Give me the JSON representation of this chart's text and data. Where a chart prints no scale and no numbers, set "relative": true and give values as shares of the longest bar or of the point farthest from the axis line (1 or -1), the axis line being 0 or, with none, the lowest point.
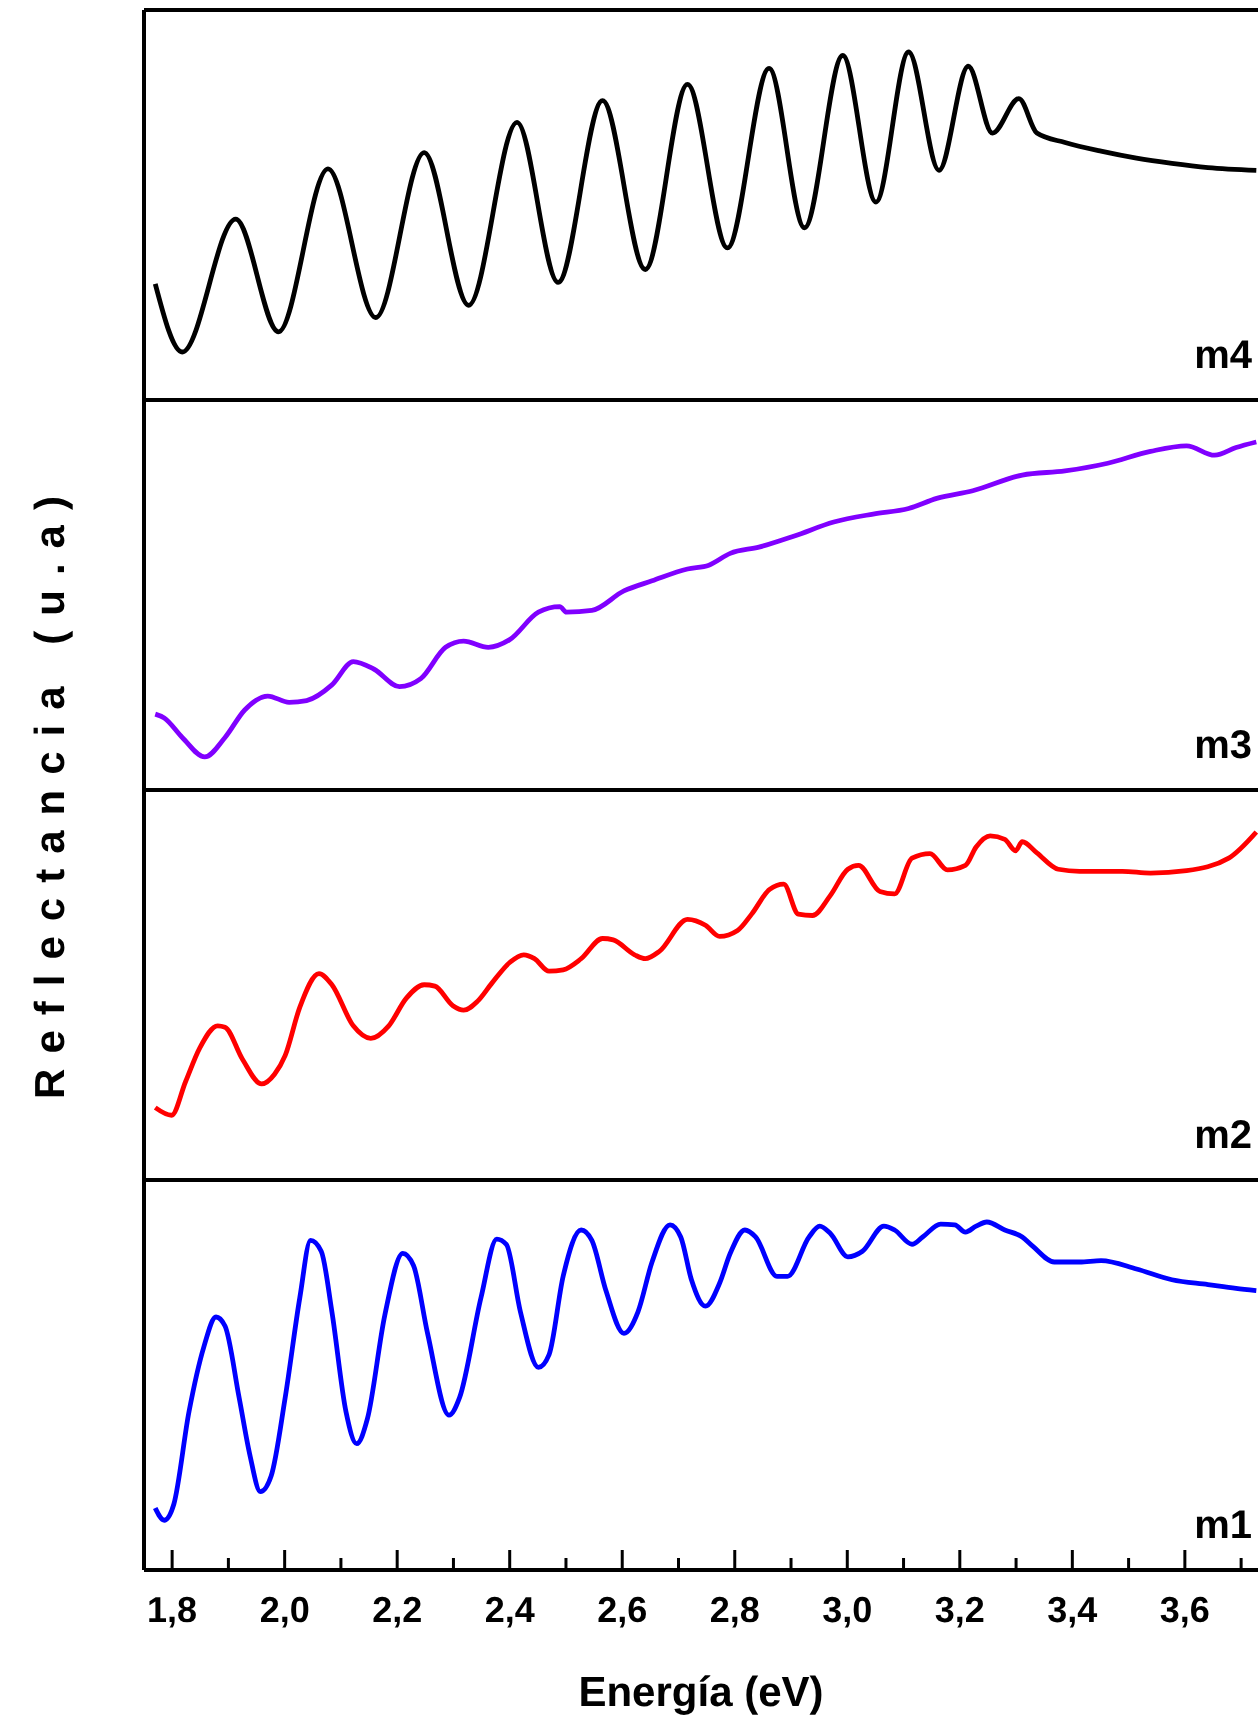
{
  "chart_data": [
    {
      "type": "line",
      "relative": true,
      "ylabel": "Reflectancia (u.a)",
      "xlim": [
        1.75,
        3.73
      ],
      "tick_labels": false,
      "series": [
        {
          "name": "m4",
          "color": "#000000",
          "x": [
            1.77,
            1.818,
            1.913,
            1.989,
            2.077,
            2.162,
            2.248,
            2.327,
            2.413,
            2.486,
            2.565,
            2.641,
            2.716,
            2.787,
            2.861,
            2.924,
            2.992,
            3.051,
            3.109,
            3.163,
            3.215,
            3.258,
            3.305,
            3.337,
            3.387,
            3.451,
            3.514,
            3.577,
            3.641,
            3.727
          ],
          "values": [
            0.334,
            0.138,
            0.52,
            0.196,
            0.664,
            0.237,
            0.711,
            0.272,
            0.798,
            0.338,
            0.86,
            0.375,
            0.907,
            0.437,
            0.953,
            0.495,
            0.99,
            0.569,
            1.0,
            0.66,
            0.959,
            0.767,
            0.866,
            0.767,
            0.74,
            0.715,
            0.695,
            0.68,
            0.668,
            0.66
          ]
        }
      ]
    },
    {
      "type": "line",
      "relative": true,
      "xlim": [
        1.75,
        3.73
      ],
      "tick_labels": false,
      "series": [
        {
          "name": "m3",
          "color": "#8000ff",
          "x": [
            1.77,
            1.786,
            1.818,
            1.858,
            1.894,
            1.929,
            1.97,
            2.008,
            2.039,
            2.084,
            2.122,
            2.159,
            2.204,
            2.242,
            2.286,
            2.318,
            2.362,
            2.4,
            2.451,
            2.489,
            2.501,
            2.546,
            2.603,
            2.653,
            2.716,
            2.754,
            2.792,
            2.843,
            2.906,
            2.976,
            3.046,
            3.109,
            3.159,
            3.223,
            3.311,
            3.387,
            3.463,
            3.539,
            3.603,
            3.653,
            3.691,
            3.727
          ],
          "values": [
            0.218,
            0.207,
            0.151,
            0.095,
            0.151,
            0.23,
            0.27,
            0.252,
            0.257,
            0.302,
            0.369,
            0.347,
            0.297,
            0.32,
            0.41,
            0.428,
            0.41,
            0.432,
            0.511,
            0.527,
            0.511,
            0.516,
            0.572,
            0.601,
            0.635,
            0.646,
            0.68,
            0.698,
            0.73,
            0.77,
            0.793,
            0.809,
            0.838,
            0.86,
            0.905,
            0.917,
            0.939,
            0.973,
            0.989,
            0.962,
            0.984,
            1.0
          ]
        }
      ]
    },
    {
      "type": "line",
      "relative": true,
      "xlim": [
        1.75,
        3.73
      ],
      "tick_labels": false,
      "series": [
        {
          "name": "m2",
          "color": "#ff0000",
          "x": [
            1.77,
            1.799,
            1.824,
            1.849,
            1.881,
            1.894,
            1.925,
            1.959,
            1.982,
            2.001,
            2.027,
            2.061,
            2.084,
            2.122,
            2.153,
            2.185,
            2.216,
            2.248,
            2.267,
            2.299,
            2.318,
            2.343,
            2.368,
            2.4,
            2.425,
            2.444,
            2.47,
            2.495,
            2.527,
            2.565,
            2.584,
            2.622,
            2.641,
            2.666,
            2.716,
            2.748,
            2.773,
            2.805,
            2.83,
            2.862,
            2.887,
            2.913,
            2.938,
            2.97,
            3.001,
            3.02,
            3.058,
            3.084,
            3.115,
            3.147,
            3.178,
            3.21,
            3.229,
            3.254,
            3.28,
            3.299,
            3.311,
            3.337,
            3.375,
            3.413,
            3.489,
            3.539,
            3.603,
            3.678,
            3.727
          ],
          "values": [
            0.208,
            0.186,
            0.283,
            0.379,
            0.443,
            0.439,
            0.347,
            0.276,
            0.304,
            0.358,
            0.497,
            0.593,
            0.561,
            0.443,
            0.407,
            0.443,
            0.522,
            0.561,
            0.557,
            0.501,
            0.488,
            0.514,
            0.565,
            0.625,
            0.647,
            0.636,
            0.6,
            0.604,
            0.636,
            0.694,
            0.69,
            0.647,
            0.636,
            0.657,
            0.749,
            0.732,
            0.7,
            0.717,
            0.764,
            0.835,
            0.85,
            0.764,
            0.76,
            0.818,
            0.893,
            0.904,
            0.829,
            0.822,
            0.925,
            0.938,
            0.891,
            0.904,
            0.957,
            0.989,
            0.979,
            0.946,
            0.972,
            0.94,
            0.893,
            0.887,
            0.887,
            0.882,
            0.889,
            0.925,
            1.0
          ]
        }
      ]
    },
    {
      "type": "line",
      "relative": true,
      "xlabel": "Energía (eV)",
      "xlim": [
        1.75,
        3.73
      ],
      "tick_labels": "x",
      "xticks": [
        {
          "value": 1.8,
          "label": "1,8"
        },
        {
          "value": 1.9,
          "label": null
        },
        {
          "value": 2.0,
          "label": "2,0"
        },
        {
          "value": 2.1,
          "label": null
        },
        {
          "value": 2.2,
          "label": "2,2"
        },
        {
          "value": 2.3,
          "label": null
        },
        {
          "value": 2.4,
          "label": "2,4"
        },
        {
          "value": 2.5,
          "label": null
        },
        {
          "value": 2.6,
          "label": "2,6"
        },
        {
          "value": 2.7,
          "label": null
        },
        {
          "value": 2.8,
          "label": "2,8"
        },
        {
          "value": 2.9,
          "label": null
        },
        {
          "value": 3.0,
          "label": "3,0"
        },
        {
          "value": 3.1,
          "label": null
        },
        {
          "value": 3.2,
          "label": "3,2"
        },
        {
          "value": 3.3,
          "label": null
        },
        {
          "value": 3.4,
          "label": "3,4"
        },
        {
          "value": 3.5,
          "label": null
        },
        {
          "value": 3.6,
          "label": "3,6"
        },
        {
          "value": 3.7,
          "label": null
        }
      ],
      "series": [
        {
          "name": "m1",
          "color": "#0000ff",
          "x": [
            1.77,
            1.786,
            1.803,
            1.83,
            1.856,
            1.878,
            1.894,
            1.919,
            1.938,
            1.957,
            1.976,
            2.001,
            2.027,
            2.046,
            2.065,
            2.084,
            2.109,
            2.128,
            2.147,
            2.178,
            2.21,
            2.229,
            2.254,
            2.292,
            2.311,
            2.349,
            2.377,
            2.394,
            2.419,
            2.451,
            2.47,
            2.495,
            2.527,
            2.546,
            2.571,
            2.603,
            2.628,
            2.653,
            2.685,
            2.704,
            2.723,
            2.748,
            2.773,
            2.792,
            2.818,
            2.837,
            2.875,
            2.894,
            2.932,
            2.951,
            2.97,
            3.001,
            3.027,
            3.065,
            3.084,
            3.115,
            3.134,
            3.166,
            3.191,
            3.21,
            3.229,
            3.248,
            3.28,
            3.311,
            3.33,
            3.368,
            3.413,
            3.451,
            3.514,
            3.577,
            3.641,
            3.691,
            3.727
          ],
          "values": [
            0.178,
            0.143,
            0.189,
            0.455,
            0.639,
            0.727,
            0.701,
            0.496,
            0.332,
            0.225,
            0.27,
            0.496,
            0.783,
            0.947,
            0.916,
            0.742,
            0.455,
            0.363,
            0.434,
            0.732,
            0.91,
            0.875,
            0.68,
            0.445,
            0.496,
            0.783,
            0.951,
            0.936,
            0.742,
            0.582,
            0.619,
            0.844,
            0.977,
            0.947,
            0.803,
            0.68,
            0.742,
            0.885,
            0.992,
            0.957,
            0.834,
            0.758,
            0.824,
            0.91,
            0.977,
            0.957,
            0.844,
            0.844,
            0.957,
            0.988,
            0.967,
            0.9,
            0.916,
            0.988,
            0.977,
            0.936,
            0.957,
            0.994,
            0.992,
            0.971,
            0.988,
            1.0,
            0.977,
            0.957,
            0.93,
            0.885,
            0.885,
            0.889,
            0.865,
            0.834,
            0.82,
            0.809,
            0.803
          ]
        }
      ]
    }
  ]
}
